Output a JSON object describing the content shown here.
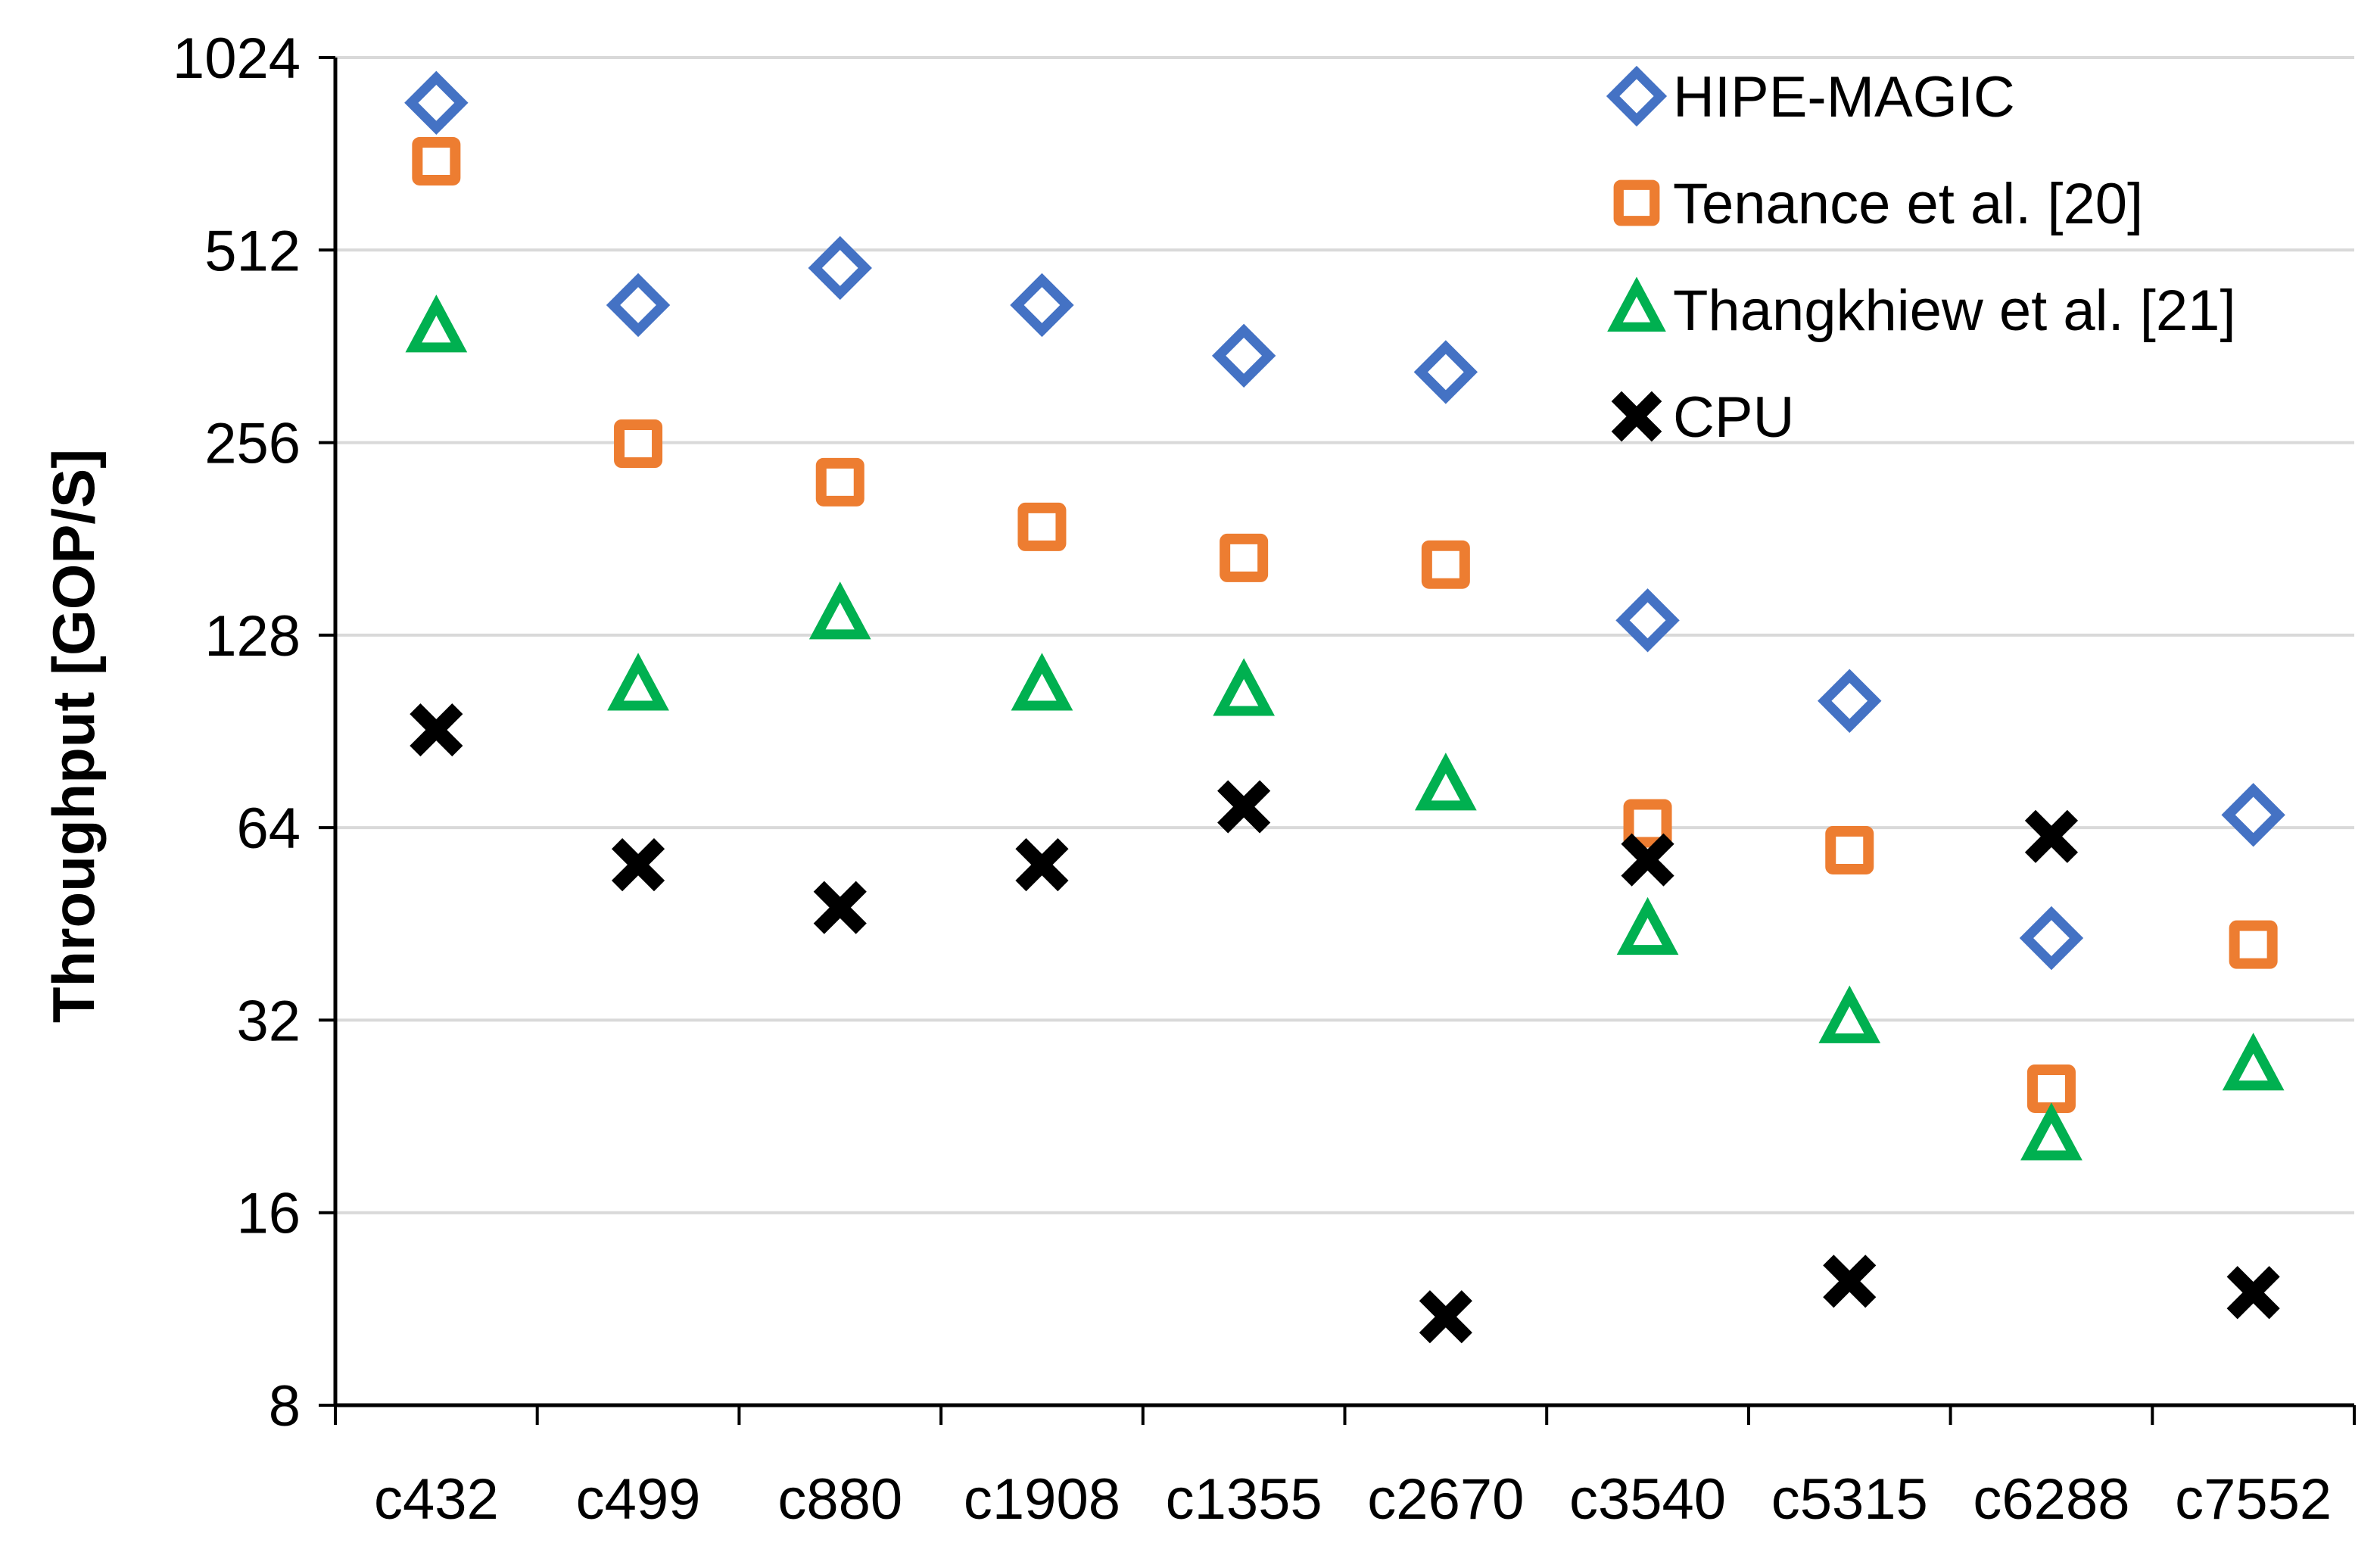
{
  "chart_data": {
    "type": "scatter",
    "title": "",
    "xlabel": "",
    "ylabel": "Throughput [GOP/S]",
    "yscale": "log2",
    "ylim": [
      8,
      1024
    ],
    "yticks": [
      "8",
      "16",
      "32",
      "64",
      "128",
      "256",
      "512",
      "1024"
    ],
    "categories": [
      "c432",
      "c499",
      "c880",
      "c1908",
      "c1355",
      "c2670",
      "c3540",
      "c5315",
      "c6288",
      "c7552"
    ],
    "legend_position": "top-right",
    "series": [
      {
        "name": "HIPE-MAGIC",
        "marker": "diamond",
        "color": "#4472C4",
        "values": [
          870,
          420,
          480,
          420,
          350,
          330,
          135,
          101,
          43,
          67
        ]
      },
      {
        "name": "Tenance et al. [20]",
        "marker": "square",
        "color": "#ED7D31",
        "values": [
          705,
          255,
          222,
          189,
          169,
          165,
          65,
          59,
          25,
          42
        ]
      },
      {
        "name": "Thangkhiew et al. [21]",
        "marker": "triangle",
        "color": "#00B050",
        "values": [
          385,
          106,
          137,
          106,
          104,
          74,
          44,
          32,
          21,
          27
        ]
      },
      {
        "name": "CPU",
        "marker": "cross",
        "color": "#000000",
        "values": [
          91,
          56,
          48,
          56,
          69,
          11,
          57,
          12.5,
          62,
          12
        ]
      }
    ]
  }
}
